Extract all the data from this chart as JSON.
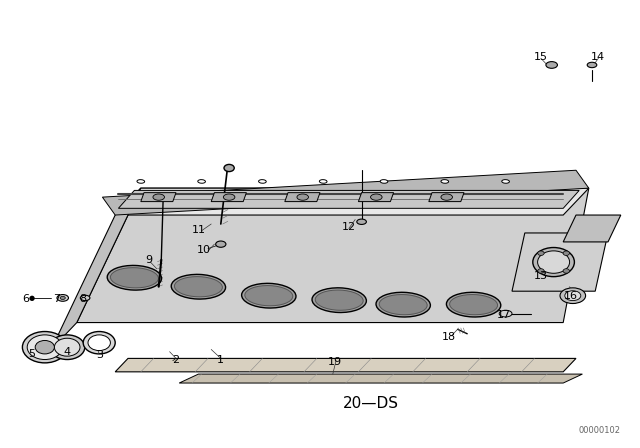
{
  "title": "",
  "background_color": "#ffffff",
  "line_color": "#000000",
  "text_color": "#000000",
  "diagram_label": "20—DS",
  "catalog_number": "00000102",
  "fig_width": 6.4,
  "fig_height": 4.48,
  "dpi": 100
}
